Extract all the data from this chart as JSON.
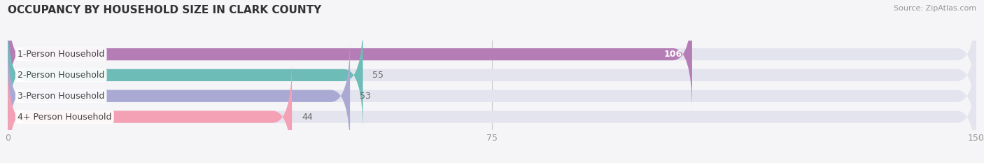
{
  "title": "OCCUPANCY BY HOUSEHOLD SIZE IN CLARK COUNTY",
  "source": "Source: ZipAtlas.com",
  "categories": [
    "1-Person Household",
    "2-Person Household",
    "3-Person Household",
    "4+ Person Household"
  ],
  "values": [
    106,
    55,
    53,
    44
  ],
  "bar_colors": [
    "#b57db5",
    "#6dbcb8",
    "#a9a9d4",
    "#f4a0b5"
  ],
  "label_colors": [
    "white",
    "#666666",
    "#666666",
    "#666666"
  ],
  "xlim": [
    0,
    150
  ],
  "xticks": [
    0,
    75,
    150
  ],
  "background_color": "#f5f5f8",
  "bar_background": "#e4e4ee",
  "title_fontsize": 11,
  "tick_label_color": "#999999",
  "source_color": "#999999",
  "bar_height": 0.58,
  "label_fontsize": 9,
  "category_fontsize": 9
}
